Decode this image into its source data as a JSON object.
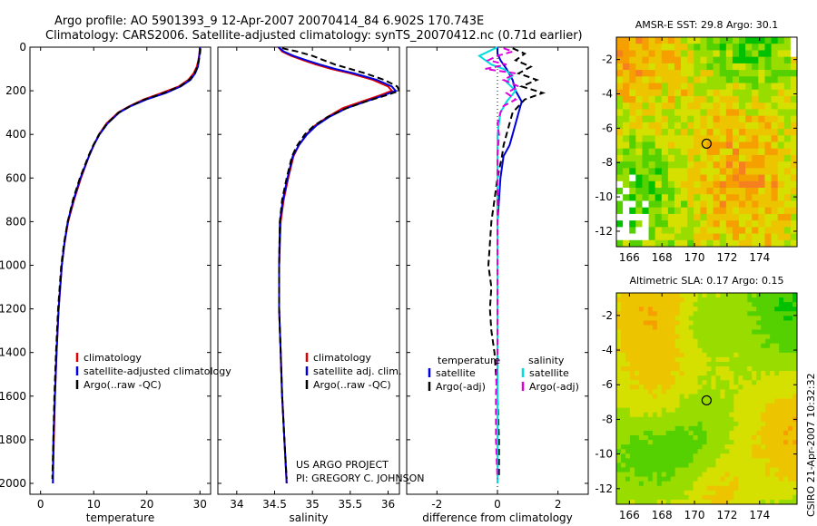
{
  "header": {
    "line1": "Argo profile: AO 5901393_9 12-Apr-2007 20070414_84 6.902S 170.743E",
    "line2": "Climatology: CARS2006. Satellite-adjusted climatology: synTS_20070412.nc (0.71d earlier)"
  },
  "footer": {
    "project": "US ARGO PROJECT",
    "pi": "PI: GREGORY C. JOHNSON",
    "stamp": "CSIRO 21-Apr-2007 10:32:32"
  },
  "chart_data": [
    {
      "type": "line",
      "xlabel": "temperature",
      "ylabel": "",
      "xlim": [
        -2,
        32
      ],
      "ylim": [
        2050,
        0
      ],
      "xticks": [
        0,
        10,
        20,
        30
      ],
      "yticks": [
        0,
        200,
        400,
        600,
        800,
        1000,
        1200,
        1400,
        1600,
        1800,
        2000
      ],
      "legend": {
        "items": [
          "climatology",
          "satellite-adjusted climatology",
          "Argo(..raw -QC)"
        ],
        "colors": [
          "#dd0000",
          "#0000dd",
          "#000000"
        ],
        "placement": "lower-right"
      },
      "series": [
        {
          "name": "climatology",
          "color": "#dd0000",
          "style": "solid",
          "depth": [
            0,
            30,
            60,
            90,
            120,
            150,
            180,
            210,
            240,
            270,
            300,
            350,
            400,
            450,
            500,
            600,
            700,
            800,
            900,
            1000,
            1200,
            1400,
            1600,
            1800,
            2000
          ],
          "values": [
            30.0,
            29.9,
            29.7,
            29.4,
            28.8,
            27.8,
            26.0,
            22.8,
            19.4,
            16.8,
            14.6,
            12.4,
            11.0,
            10.0,
            9.1,
            7.6,
            6.3,
            5.2,
            4.5,
            4.0,
            3.4,
            3.0,
            2.7,
            2.5,
            2.3
          ]
        },
        {
          "name": "satellite-adjusted climatology",
          "color": "#0000dd",
          "style": "solid",
          "depth": [
            0,
            30,
            60,
            90,
            120,
            150,
            180,
            210,
            240,
            270,
            300,
            350,
            400,
            450,
            500,
            600,
            700,
            800,
            900,
            1000,
            1200,
            1400,
            1600,
            1800,
            2000
          ],
          "values": [
            30.0,
            29.9,
            29.8,
            29.6,
            29.1,
            28.2,
            26.4,
            23.6,
            19.9,
            17.0,
            14.8,
            12.6,
            11.1,
            10.0,
            9.1,
            7.5,
            6.2,
            5.1,
            4.5,
            4.0,
            3.4,
            3.0,
            2.7,
            2.4,
            2.3
          ]
        },
        {
          "name": "Argo(..raw -QC)",
          "color": "#000000",
          "style": "dashed",
          "depth": [
            5,
            30,
            60,
            90,
            120,
            150,
            180,
            210,
            240,
            270,
            300,
            350,
            400,
            450,
            500,
            600,
            700,
            800,
            900,
            1000,
            1200,
            1400,
            1600,
            1800,
            1980
          ],
          "values": [
            30.1,
            30.0,
            29.8,
            29.5,
            29.0,
            28.0,
            26.2,
            23.2,
            19.6,
            16.9,
            14.7,
            12.5,
            11.0,
            9.9,
            9.0,
            7.4,
            6.1,
            5.1,
            4.4,
            3.9,
            3.3,
            2.9,
            2.6,
            2.4,
            2.2
          ]
        }
      ]
    },
    {
      "type": "line",
      "xlabel": "salinity",
      "ylabel": "",
      "xlim": [
        33.75,
        36.15
      ],
      "ylim": [
        2050,
        0
      ],
      "xticks": [
        34,
        34.5,
        35,
        35.5,
        36
      ],
      "yticks": [
        0,
        200,
        400,
        600,
        800,
        1000,
        1200,
        1400,
        1600,
        1800,
        2000
      ],
      "legend": {
        "items": [
          "climatology",
          "satellite adj. clim.",
          "Argo(..raw -QC)"
        ],
        "colors": [
          "#dd0000",
          "#0000dd",
          "#000000"
        ],
        "placement": "lower-right"
      },
      "series": [
        {
          "name": "climatology",
          "color": "#dd0000",
          "style": "solid",
          "depth": [
            0,
            20,
            40,
            60,
            80,
            100,
            120,
            150,
            180,
            200,
            220,
            250,
            280,
            320,
            360,
            400,
            450,
            500,
            600,
            700,
            800,
            1000,
            1200,
            1400,
            1600,
            1800,
            2000
          ],
          "values": [
            34.55,
            34.6,
            34.72,
            34.88,
            35.05,
            35.25,
            35.5,
            35.8,
            36.0,
            36.05,
            35.9,
            35.65,
            35.4,
            35.2,
            35.03,
            34.92,
            34.82,
            34.75,
            34.68,
            34.62,
            34.58,
            34.56,
            34.56,
            34.58,
            34.6,
            34.63,
            34.66
          ]
        },
        {
          "name": "satellite adj. clim.",
          "color": "#0000dd",
          "style": "solid",
          "depth": [
            0,
            20,
            40,
            60,
            80,
            100,
            120,
            150,
            180,
            200,
            220,
            250,
            280,
            320,
            360,
            400,
            450,
            500,
            600,
            700,
            800,
            1000,
            1200,
            1400,
            1600,
            1800,
            2000
          ],
          "values": [
            34.55,
            34.62,
            34.75,
            34.92,
            35.1,
            35.3,
            35.55,
            35.85,
            36.05,
            36.1,
            35.95,
            35.7,
            35.45,
            35.22,
            35.05,
            34.93,
            34.82,
            34.74,
            34.67,
            34.61,
            34.57,
            34.56,
            34.56,
            34.58,
            34.6,
            34.63,
            34.66
          ]
        },
        {
          "name": "Argo(..raw -QC)",
          "color": "#000000",
          "style": "dashed",
          "depth": [
            5,
            20,
            40,
            60,
            80,
            100,
            120,
            150,
            180,
            200,
            220,
            250,
            280,
            320,
            360,
            400,
            450,
            500,
            600,
            700,
            800,
            1000,
            1200,
            1400,
            1600,
            1800,
            1980
          ],
          "values": [
            34.6,
            34.8,
            35.0,
            35.15,
            35.3,
            35.5,
            35.7,
            35.95,
            36.12,
            36.15,
            35.98,
            35.7,
            35.45,
            35.2,
            35.02,
            34.9,
            34.8,
            34.73,
            34.66,
            34.6,
            34.57,
            34.56,
            34.56,
            34.58,
            34.6,
            34.63,
            34.66
          ]
        }
      ]
    },
    {
      "type": "line",
      "xlabel": "difference from climatology",
      "ylabel": "",
      "xlim": [
        -3,
        3
      ],
      "ylim": [
        2050,
        0
      ],
      "xticks": [
        -2,
        0,
        2
      ],
      "yticks": [
        0,
        200,
        400,
        600,
        800,
        1000,
        1200,
        1400,
        1600,
        1800,
        2000
      ],
      "legend": {
        "groups": [
          "temperature",
          "salinity"
        ],
        "items": [
          "satellite",
          "Argo(-adj)",
          "satellite",
          "Argo(-adj)"
        ],
        "colors": [
          "#0000dd",
          "#000000",
          "#00dddd",
          "#dd00dd"
        ],
        "placement": "lower-right"
      },
      "series": [
        {
          "name": "satellite",
          "group": "temperature",
          "color": "#0000dd",
          "style": "solid",
          "depth": [
            0,
            30,
            60,
            100,
            150,
            200,
            250,
            300,
            350,
            400,
            450,
            500,
            600,
            700,
            800,
            1000,
            1200,
            1400,
            1600,
            1800,
            2000
          ],
          "values": [
            0.0,
            0.0,
            0.1,
            0.3,
            0.5,
            0.6,
            0.8,
            0.7,
            0.6,
            0.5,
            0.4,
            0.2,
            0.1,
            0.05,
            0.0,
            0.0,
            0.0,
            0.0,
            0.0,
            0.0,
            0.0
          ]
        },
        {
          "name": "Argo(-adj)",
          "group": "temperature",
          "color": "#000000",
          "style": "dashed",
          "depth": [
            5,
            30,
            60,
            90,
            120,
            150,
            180,
            210,
            240,
            270,
            300,
            350,
            400,
            450,
            500,
            600,
            700,
            800,
            900,
            1000,
            1100,
            1200,
            1300,
            1400,
            1600,
            1800,
            1980
          ],
          "values": [
            0.5,
            0.9,
            0.6,
            1.1,
            0.7,
            1.3,
            0.8,
            1.5,
            0.9,
            0.7,
            0.5,
            0.4,
            0.3,
            0.2,
            0.15,
            0.0,
            -0.1,
            -0.2,
            -0.25,
            -0.3,
            -0.2,
            -0.25,
            -0.2,
            -0.1,
            0.0,
            0.05,
            0.05
          ]
        },
        {
          "name": "satellite",
          "group": "salinity",
          "color": "#00dddd",
          "style": "solid",
          "depth": [
            0,
            20,
            40,
            60,
            80,
            100,
            130,
            160,
            200,
            250,
            300,
            400,
            500,
            600,
            700,
            800,
            1000,
            1200,
            1400,
            1600,
            1800,
            2000
          ],
          "values": [
            0.0,
            -0.3,
            -0.6,
            -0.4,
            -0.2,
            0.2,
            0.5,
            0.3,
            0.6,
            0.3,
            0.1,
            0.0,
            0.0,
            0.0,
            0.0,
            0.0,
            0.0,
            0.0,
            0.0,
            0.0,
            0.0,
            0.0
          ]
        },
        {
          "name": "Argo(-adj)",
          "group": "salinity",
          "color": "#dd00dd",
          "style": "dashed",
          "depth": [
            5,
            20,
            40,
            60,
            80,
            100,
            120,
            150,
            180,
            210,
            240,
            270,
            300,
            350,
            400,
            500,
            600,
            800,
            1000,
            1200,
            1400,
            1600,
            1800,
            1980
          ],
          "values": [
            0.2,
            0.5,
            0.0,
            -0.3,
            0.3,
            -0.4,
            0.6,
            0.2,
            0.7,
            0.3,
            0.6,
            0.2,
            0.1,
            0.0,
            0.05,
            0.0,
            0.0,
            0.0,
            0.0,
            0.0,
            0.0,
            -0.05,
            -0.05,
            0.0
          ]
        }
      ]
    },
    {
      "type": "heatmap",
      "title": "AMSR-E SST: 29.8 Argo: 30.1",
      "xticks": [
        166,
        168,
        170,
        172,
        174
      ],
      "yticks": [
        -2,
        -4,
        -6,
        -8,
        -10,
        -12
      ],
      "xlim": [
        165.2,
        176.3
      ],
      "ylim": [
        -12.9,
        -0.7
      ],
      "marker": {
        "lon": 170.743,
        "lat": -6.902
      },
      "colormap": [
        "#00c000",
        "#55d000",
        "#99dd00",
        "#d6e000",
        "#ecc400",
        "#f5a000",
        "#f68020"
      ]
    },
    {
      "type": "heatmap",
      "title": "Altimetric SLA: 0.17 Argo: 0.15",
      "xticks": [
        166,
        168,
        170,
        172,
        174
      ],
      "yticks": [
        -2,
        -4,
        -6,
        -8,
        -10,
        -12
      ],
      "xlim": [
        165.2,
        176.3
      ],
      "ylim": [
        -12.9,
        -0.7
      ],
      "marker": {
        "lon": 170.743,
        "lat": -6.902
      },
      "colormap": [
        "#00c000",
        "#55d000",
        "#99dd00",
        "#d6e000",
        "#ecc400",
        "#f5a000",
        "#f68020"
      ]
    }
  ]
}
